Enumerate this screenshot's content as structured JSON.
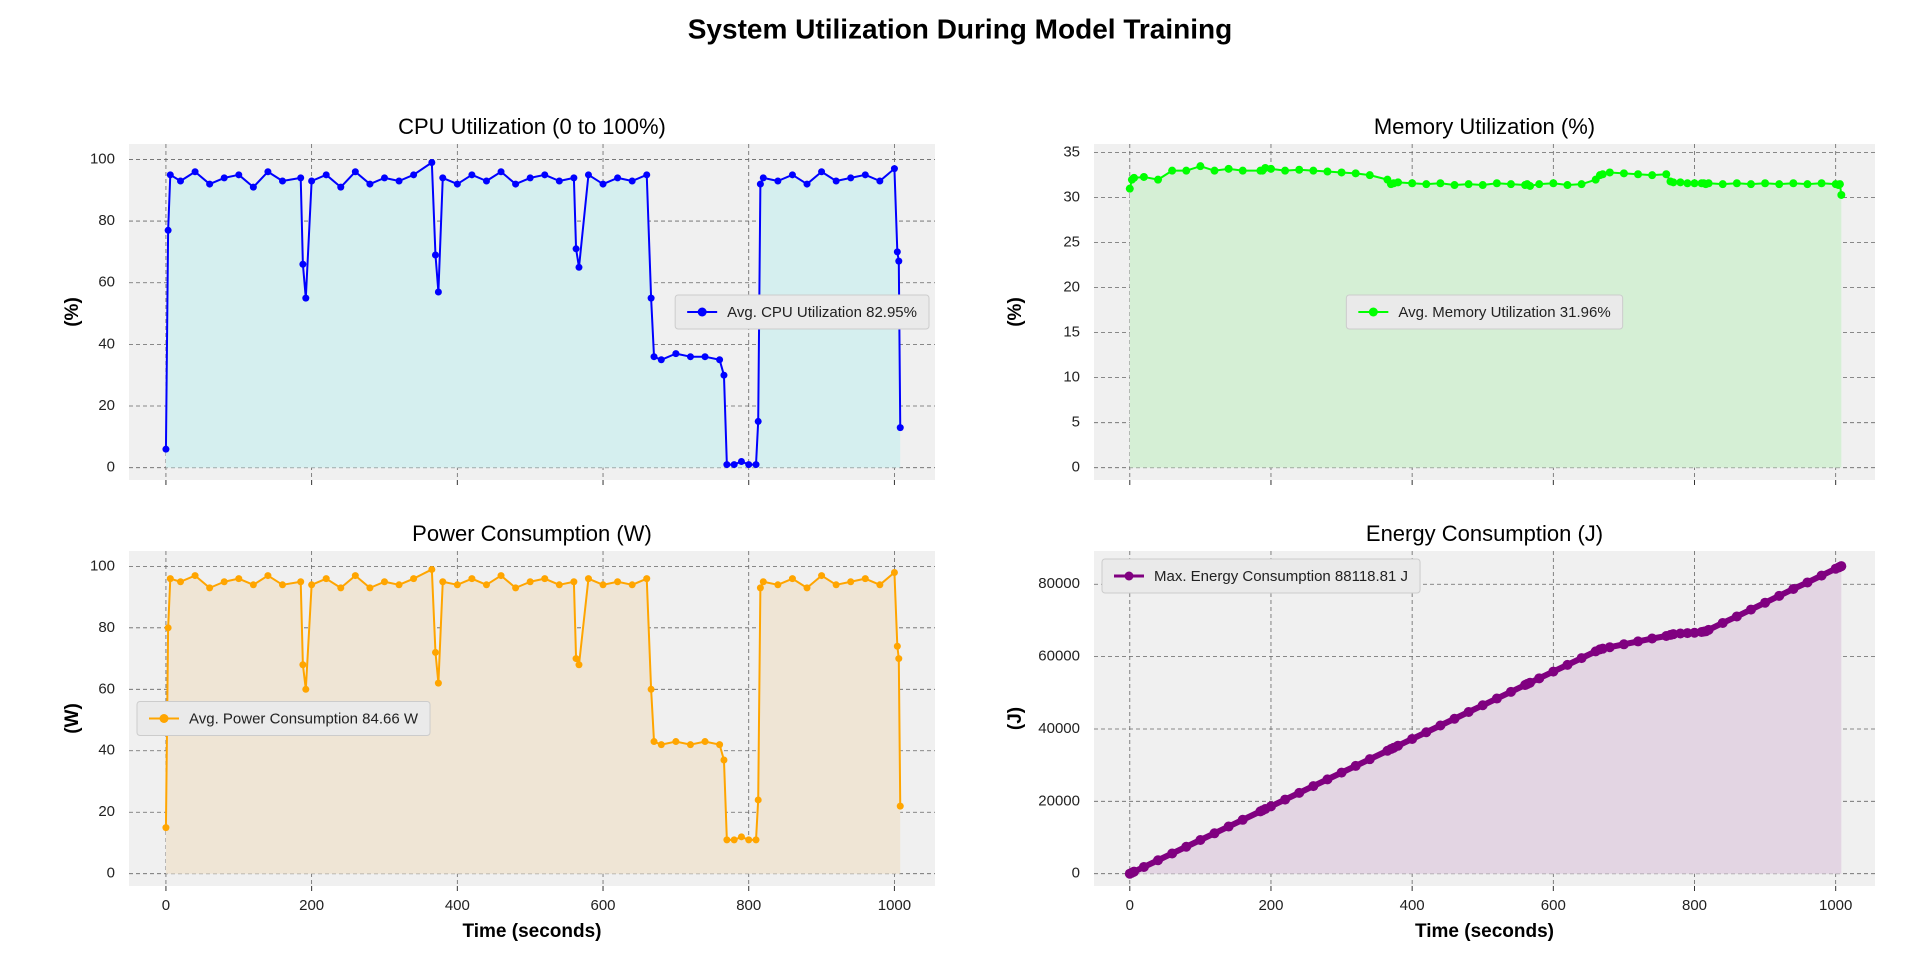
{
  "title": "System Utilization During Model Training",
  "chart_data": [
    {
      "type": "line",
      "title": "CPU Utilization (0 to 100%)",
      "ylabel": "(%)",
      "show_xtick_labels": false,
      "x": [
        0,
        3,
        6,
        20,
        40,
        60,
        80,
        100,
        120,
        140,
        160,
        185,
        188,
        192,
        200,
        220,
        240,
        260,
        280,
        300,
        320,
        340,
        365,
        370,
        374,
        380,
        400,
        420,
        440,
        460,
        480,
        500,
        520,
        540,
        560,
        563,
        567,
        580,
        600,
        620,
        640,
        660,
        666,
        670,
        680,
        700,
        720,
        740,
        760,
        766,
        770,
        780,
        790,
        800,
        810,
        813,
        816,
        820,
        840,
        860,
        880,
        900,
        920,
        940,
        960,
        980,
        1000,
        1004,
        1006,
        1008
      ],
      "series": [
        {
          "name": "Avg. CPU Utilization 82.95%",
          "color": "#0000ff",
          "fill_color": "#d5efef",
          "line_width": 2,
          "marker_size": 3.5,
          "values": [
            6,
            77,
            95,
            93,
            96,
            92,
            94,
            95,
            91,
            96,
            93,
            94,
            66,
            55,
            93,
            95,
            91,
            96,
            92,
            94,
            93,
            95,
            99,
            69,
            57,
            94,
            92,
            95,
            93,
            96,
            92,
            94,
            95,
            93,
            94,
            71,
            65,
            95,
            92,
            94,
            93,
            95,
            55,
            36,
            35,
            37,
            36,
            36,
            35,
            30,
            1,
            1,
            2,
            1,
            1,
            15,
            92,
            94,
            93,
            95,
            92,
            96,
            93,
            94,
            95,
            93,
            97,
            70,
            67,
            13
          ]
        }
      ],
      "xlim": [
        -50.7,
        1055.7
      ],
      "ylim": [
        -4,
        105
      ],
      "xticks": [
        0,
        200,
        400,
        600,
        800,
        1000
      ],
      "yticks": [
        0,
        20,
        40,
        60,
        80,
        100
      ],
      "grid": true,
      "legend_loc": "center right"
    },
    {
      "type": "line",
      "title": "Memory Utilization (%)",
      "ylabel": "(%)",
      "show_xtick_labels": false,
      "x": [
        0,
        3,
        6,
        20,
        40,
        60,
        80,
        100,
        120,
        140,
        160,
        185,
        188,
        192,
        200,
        220,
        240,
        260,
        280,
        300,
        320,
        340,
        365,
        370,
        374,
        380,
        400,
        420,
        440,
        460,
        480,
        500,
        520,
        540,
        560,
        563,
        567,
        580,
        600,
        620,
        640,
        660,
        666,
        670,
        680,
        700,
        720,
        740,
        760,
        766,
        770,
        780,
        790,
        800,
        810,
        813,
        816,
        820,
        840,
        860,
        880,
        900,
        920,
        940,
        960,
        980,
        1000,
        1004,
        1006,
        1008
      ],
      "series": [
        {
          "name": "Avg. Memory Utilization 31.96%",
          "color": "#00ff00",
          "fill_color": "#d5efd5",
          "line_width": 2,
          "marker_size": 4,
          "values": [
            31,
            32,
            32.2,
            32.3,
            32,
            33,
            33,
            33.5,
            33,
            33.2,
            33,
            33,
            33,
            33.3,
            33.2,
            33,
            33.1,
            33,
            32.9,
            32.8,
            32.7,
            32.5,
            32,
            31.5,
            31.6,
            31.7,
            31.6,
            31.5,
            31.6,
            31.4,
            31.5,
            31.4,
            31.6,
            31.5,
            31.4,
            31.5,
            31.3,
            31.5,
            31.6,
            31.4,
            31.5,
            32,
            32.5,
            32.6,
            32.8,
            32.7,
            32.6,
            32.5,
            32.6,
            31.8,
            31.7,
            31.7,
            31.6,
            31.6,
            31.6,
            31.6,
            31.5,
            31.6,
            31.5,
            31.6,
            31.5,
            31.6,
            31.5,
            31.6,
            31.5,
            31.6,
            31.5,
            31.4,
            31.5,
            30.3
          ]
        }
      ],
      "xlim": [
        -50.7,
        1055.7
      ],
      "ylim": [
        -1.37,
        35.96
      ],
      "xticks": [
        0,
        200,
        400,
        600,
        800,
        1000
      ],
      "yticks": [
        0,
        5,
        10,
        15,
        20,
        25,
        30,
        35
      ],
      "grid": true,
      "legend_loc": "center"
    },
    {
      "type": "line",
      "title": "Power Consumption (W)",
      "ylabel": "(W)",
      "xlabel": "Time (seconds)",
      "show_xtick_labels": true,
      "x": [
        0,
        3,
        6,
        20,
        40,
        60,
        80,
        100,
        120,
        140,
        160,
        185,
        188,
        192,
        200,
        220,
        240,
        260,
        280,
        300,
        320,
        340,
        365,
        370,
        374,
        380,
        400,
        420,
        440,
        460,
        480,
        500,
        520,
        540,
        560,
        563,
        567,
        580,
        600,
        620,
        640,
        660,
        666,
        670,
        680,
        700,
        720,
        740,
        760,
        766,
        770,
        780,
        790,
        800,
        810,
        813,
        816,
        820,
        840,
        860,
        880,
        900,
        920,
        940,
        960,
        980,
        1000,
        1004,
        1006,
        1008
      ],
      "series": [
        {
          "name": "Avg. Power Consumption 84.66 W",
          "color": "#ffa500",
          "fill_color": "#efe5d5",
          "line_width": 2,
          "marker_size": 3.5,
          "values": [
            15,
            80,
            96,
            95,
            97,
            93,
            95,
            96,
            94,
            97,
            94,
            95,
            68,
            60,
            94,
            96,
            93,
            97,
            93,
            95,
            94,
            96,
            99,
            72,
            62,
            95,
            94,
            96,
            94,
            97,
            93,
            95,
            96,
            94,
            95,
            70,
            68,
            96,
            94,
            95,
            94,
            96,
            60,
            43,
            42,
            43,
            42,
            43,
            42,
            37,
            11,
            11,
            12,
            11,
            11,
            24,
            93,
            95,
            94,
            96,
            93,
            97,
            94,
            95,
            96,
            94,
            98,
            74,
            70,
            22
          ]
        }
      ],
      "xlim": [
        -50.7,
        1055.7
      ],
      "ylim": [
        -4,
        105
      ],
      "xticks": [
        0,
        200,
        400,
        600,
        800,
        1000
      ],
      "yticks": [
        0,
        20,
        40,
        60,
        80,
        100
      ],
      "grid": true,
      "legend_loc": "center left"
    },
    {
      "type": "line",
      "title": "Energy Consumption (J)",
      "ylabel": "(J)",
      "xlabel": "Time (seconds)",
      "show_xtick_labels": true,
      "x": [
        0,
        3,
        6,
        20,
        40,
        60,
        80,
        100,
        120,
        140,
        160,
        185,
        188,
        192,
        200,
        220,
        240,
        260,
        280,
        300,
        320,
        340,
        365,
        370,
        374,
        380,
        400,
        420,
        440,
        460,
        480,
        500,
        520,
        540,
        560,
        563,
        567,
        580,
        600,
        620,
        640,
        660,
        666,
        670,
        680,
        700,
        720,
        740,
        760,
        766,
        770,
        780,
        790,
        800,
        810,
        813,
        816,
        820,
        840,
        860,
        880,
        900,
        920,
        940,
        960,
        980,
        1000,
        1004,
        1006,
        1008
      ],
      "series": [
        {
          "name": "Max. Energy Consumption 88118.81 J",
          "color": "#800080",
          "fill_color": "#e3d5e3",
          "line_width": 6,
          "marker_size": 5,
          "values": [
            0,
            280,
            560,
            1860,
            3720,
            5590,
            7450,
            9310,
            11170,
            13030,
            14900,
            17220,
            17500,
            17880,
            18620,
            20480,
            22340,
            24210,
            26070,
            27930,
            29790,
            31650,
            33980,
            34450,
            34820,
            35380,
            37240,
            39100,
            40960,
            42830,
            44690,
            46550,
            48410,
            50270,
            52140,
            52420,
            52790,
            54000,
            55860,
            57720,
            59580,
            61450,
            62000,
            62200,
            62600,
            63400,
            64200,
            65000,
            65700,
            66000,
            66200,
            66400,
            66500,
            66600,
            66800,
            66900,
            67000,
            67400,
            69300,
            71100,
            73000,
            74900,
            76800,
            78700,
            80500,
            82400,
            84300,
            84600,
            84800,
            85000
          ]
        }
      ],
      "xlim": [
        -50.7,
        1055.7
      ],
      "ylim": [
        -3400,
        89190
      ],
      "xticks": [
        0,
        200,
        400,
        600,
        800,
        1000
      ],
      "yticks": [
        0,
        20000,
        40000,
        60000,
        80000
      ],
      "grid": true,
      "legend_loc": "upper left"
    }
  ]
}
